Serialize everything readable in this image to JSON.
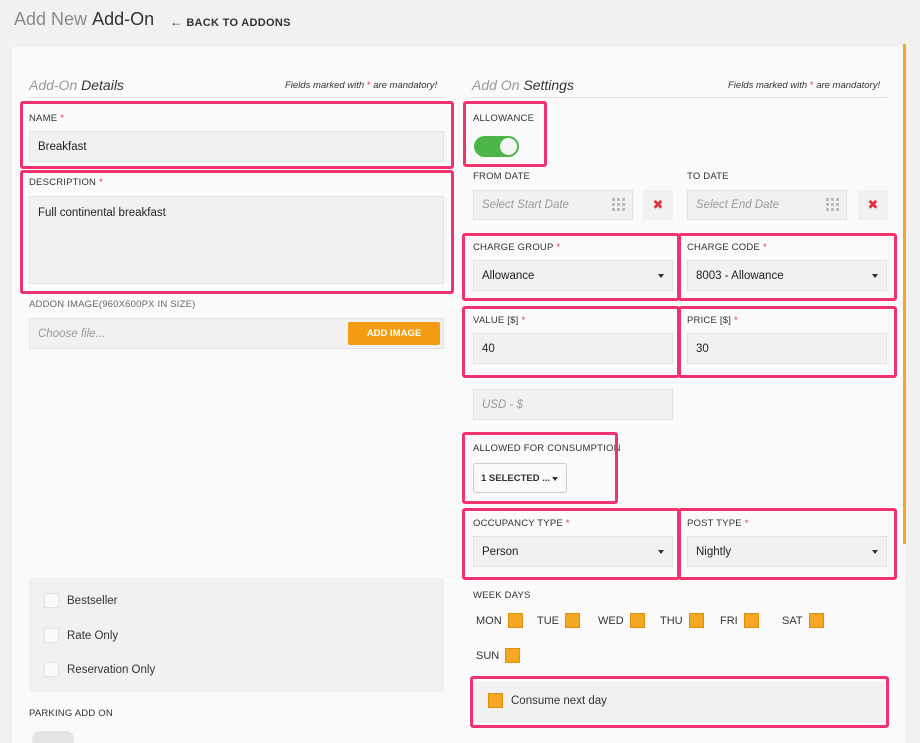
{
  "header": {
    "title_light": "Add New",
    "title_bold": "Add-On",
    "back_label": "BACK TO ADDONS"
  },
  "details": {
    "title_italic": "Add-On",
    "title_main": "Details",
    "mandatory_prefix": "Fields marked with",
    "mandatory_star": "*",
    "mandatory_suffix": "are mandatory!",
    "name_label": "NAME",
    "name_value": "Breakfast",
    "description_label": "DESCRIPTION",
    "description_value": "Full continental breakfast",
    "image_label": "ADDON IMAGE(960X600PX IN SIZE)",
    "image_placeholder": "Choose file...",
    "add_image_label": "ADD IMAGE",
    "checkboxes": [
      "Bestseller",
      "Rate Only",
      "Reservation Only"
    ],
    "parking_label": "PARKING ADD ON"
  },
  "settings": {
    "title_italic": "Add On",
    "title_main": "Settings",
    "mandatory_prefix": "Fields marked with",
    "mandatory_star": "*",
    "mandatory_suffix": "are mandatory!",
    "allowance_label": "ALLOWANCE",
    "allowance_on": true,
    "from_date_label": "FROM DATE",
    "from_date_placeholder": "Select Start Date",
    "to_date_label": "TO DATE",
    "to_date_placeholder": "Select End Date",
    "clear_symbol": "✖",
    "charge_group_label": "CHARGE GROUP",
    "charge_group_value": "Allowance",
    "charge_code_label": "CHARGE CODE",
    "charge_code_value": "8003 - Allowance",
    "value_label": "VALUE [$]",
    "value_value": "40",
    "price_label": "PRICE [$]",
    "price_value": "30",
    "currency_placeholder": "USD - $",
    "allowed_label": "ALLOWED FOR CONSUMPTION",
    "allowed_value": "1 SELECTED ...",
    "occupancy_label": "OCCUPANCY TYPE",
    "occupancy_value": "Person",
    "post_type_label": "POST TYPE",
    "post_type_value": "Nightly",
    "week_days_label": "WEEK DAYS",
    "week_days": [
      "MON",
      "TUE",
      "WED",
      "THU",
      "FRI",
      "SAT",
      "SUN"
    ],
    "consume_next_day_label": "Consume next day"
  },
  "colors": {
    "accent_orange": "#f39c12",
    "highlight_pink": "#f0336c",
    "toggle_green": "#4cb648",
    "required_red": "#e0323c"
  }
}
